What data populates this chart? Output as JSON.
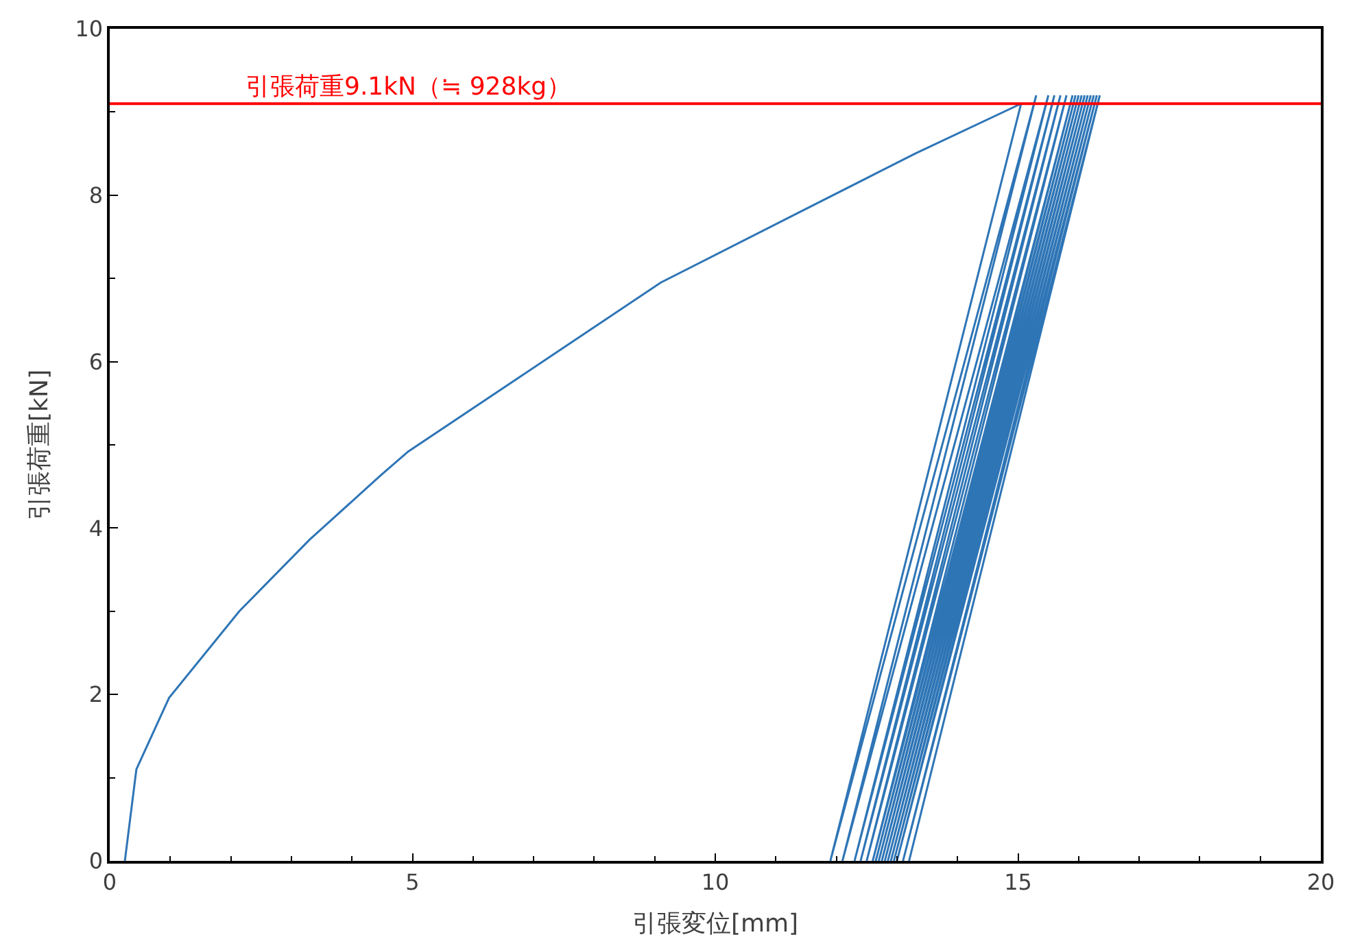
{
  "chart_data": {
    "type": "line",
    "xlabel": "引張変位[mm]",
    "ylabel": "引張荷重[kN]",
    "xlim": [
      0,
      20
    ],
    "xticks": [
      0,
      5,
      10,
      15,
      20
    ],
    "ylim": [
      0,
      10
    ],
    "yticks": [
      0,
      2,
      4,
      6,
      8,
      10
    ],
    "marker": "none",
    "line_style": "solid",
    "series": [
      {
        "color": "#2e75b6",
        "x": [
          0.25,
          0.44,
          0.98,
          2.14,
          3.3,
          4.47,
          4.93,
          6.8,
          9.1,
          11.4,
          13.3,
          15.05,
          11.9,
          15.3,
          12.1,
          15.5,
          12.3,
          15.6,
          12.4,
          15.7,
          12.5,
          15.8,
          12.6,
          15.9,
          12.65,
          15.95,
          12.7,
          16.0,
          12.75,
          16.05,
          12.8,
          16.1,
          12.85,
          16.15,
          12.9,
          16.2,
          12.95,
          16.25,
          13.0,
          16.3,
          13.1,
          16.35,
          13.2
        ],
        "values": [
          0,
          1.1,
          1.96,
          3.0,
          3.86,
          4.63,
          4.92,
          5.83,
          6.95,
          7.8,
          8.5,
          9.1,
          0,
          9.2,
          0,
          9.2,
          0,
          9.2,
          0,
          9.2,
          0,
          9.2,
          0,
          9.2,
          0,
          9.2,
          0,
          9.2,
          0,
          9.2,
          0,
          9.2,
          0,
          9.2,
          0,
          9.2,
          0,
          9.2,
          0,
          9.2,
          0,
          9.2,
          0
        ]
      }
    ],
    "ref_lines": [
      {
        "axis": "y",
        "value": 9.1,
        "label": "引張荷重9.1kN（≒ 928kg）",
        "color": "#ff0000",
        "line_style": "solid"
      }
    ]
  }
}
